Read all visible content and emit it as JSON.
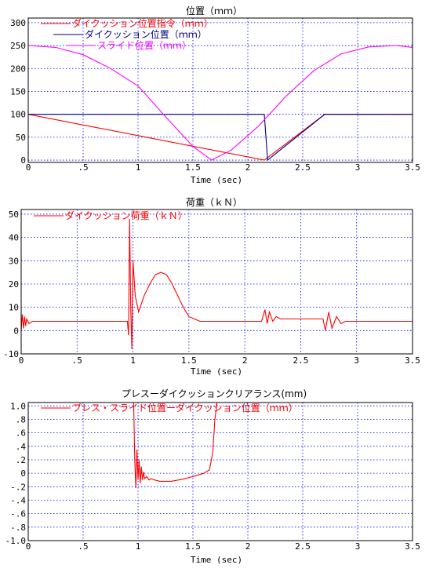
{
  "chart_data": [
    {
      "type": "line",
      "title": "位置（ｍｍ）",
      "xlabel": "Time (sec)",
      "xlim": [
        0,
        3.5
      ],
      "ylim": [
        -5,
        310
      ],
      "x_ticks": [
        0,
        0.5,
        1,
        1.5,
        2,
        2.5,
        3,
        3.5
      ],
      "x_tick_labels": [
        "0",
        ".5",
        "1",
        "1.5",
        "2",
        "2.5",
        "3",
        "3.5"
      ],
      "y_ticks": [
        0,
        50,
        100,
        150,
        200,
        250,
        300
      ],
      "y_tick_labels": [
        "0",
        "50",
        "100",
        "150",
        "200",
        "250",
        "300"
      ],
      "grid": true,
      "legend_position": "top-left",
      "series": [
        {
          "name": "ダイクッション位置指令（ｍｍ）",
          "color": "#ff0000",
          "x": [
            0,
            2.15,
            2.7,
            3.5
          ],
          "y": [
            100,
            0,
            100,
            100
          ]
        },
        {
          "name": "ダイクッション位置（ｍｍ）",
          "color": "#000080",
          "x": [
            0,
            2.15,
            2.18,
            2.7,
            3.5
          ],
          "y": [
            100,
            100,
            0,
            100,
            100
          ]
        },
        {
          "name": "スライド位置（ｍｍ）",
          "color": "#ff00ff",
          "x": [
            0,
            0.25,
            0.5,
            0.75,
            1.0,
            1.25,
            1.5,
            1.67,
            1.85,
            2.1,
            2.35,
            2.6,
            2.85,
            3.1,
            3.35,
            3.5
          ],
          "y": [
            250,
            246,
            230,
            200,
            162,
            95,
            30,
            0,
            22,
            75,
            140,
            195,
            232,
            247,
            250,
            246
          ]
        }
      ]
    },
    {
      "type": "line",
      "title": "荷重（ｋＮ）",
      "xlabel": "Time (sec)",
      "xlim": [
        0,
        3.5
      ],
      "ylim": [
        -10,
        52
      ],
      "x_ticks": [
        0,
        0.5,
        1,
        1.5,
        2,
        2.5,
        3,
        3.5
      ],
      "x_tick_labels": [
        "0",
        ".5",
        "1",
        "1.5",
        "2",
        "2.5",
        "3",
        "3.5"
      ],
      "y_ticks": [
        -10,
        0,
        10,
        20,
        30,
        40,
        50
      ],
      "y_tick_labels": [
        "-10",
        "0",
        "10",
        "20",
        "30",
        "40",
        "50"
      ],
      "grid": true,
      "legend_position": "top-left",
      "series": [
        {
          "name": "ダイクッション荷重（ｋＮ）",
          "color": "#ff0000",
          "x": [
            0,
            0.01,
            0.02,
            0.03,
            0.04,
            0.05,
            0.07,
            0.1,
            0.9,
            0.95,
            0.96,
            0.97,
            0.98,
            0.99,
            1.0,
            1.02,
            1.05,
            1.1,
            1.15,
            1.2,
            1.25,
            1.3,
            1.35,
            1.4,
            1.45,
            1.5,
            1.55,
            1.6,
            1.7,
            2.15,
            2.18,
            2.2,
            2.22,
            2.25,
            2.28,
            2.32,
            2.35,
            2.7,
            2.72,
            2.75,
            2.78,
            2.82,
            2.86,
            2.9,
            3.5
          ],
          "y": [
            0,
            7,
            1,
            6,
            2,
            5,
            3,
            4,
            4,
            4,
            -2,
            48,
            10,
            -8,
            30,
            15,
            8,
            15,
            20,
            24,
            25,
            24,
            20,
            15,
            10,
            6,
            5,
            4,
            4,
            4,
            9,
            3,
            8,
            4,
            6,
            5,
            5,
            5,
            0,
            8,
            1,
            6,
            3,
            4,
            4
          ]
        }
      ]
    },
    {
      "type": "line",
      "title": "プレスーダイクッションクリアランス(mm)",
      "xlabel": "Time (sec)",
      "xlim": [
        0,
        3.5
      ],
      "ylim": [
        -1.0,
        1.05
      ],
      "x_ticks": [
        0,
        0.5,
        1,
        1.5,
        2,
        2.5,
        3,
        3.5
      ],
      "x_tick_labels": [
        "0",
        ".5",
        "1",
        "1.5",
        "2",
        "2.5",
        "3",
        "3.5"
      ],
      "y_ticks": [
        -1.0,
        -0.8,
        -0.6,
        -0.4,
        -0.2,
        0,
        0.2,
        0.4,
        0.6,
        0.8,
        1.0
      ],
      "y_tick_labels": [
        "-1.0",
        "-.8",
        "-.6",
        "-.4",
        "-.2",
        "0",
        ".2",
        ".4",
        ".6",
        ".8",
        "1.0"
      ],
      "grid": true,
      "legend_position": "top-left",
      "series": [
        {
          "name": "プレス・スライド位置ーダイクッション位置（ｍｍ）",
          "color": "#ff0000",
          "x": [
            0.96,
            0.97,
            0.98,
            0.99,
            1.0,
            1.01,
            1.02,
            1.03,
            1.04,
            1.05,
            1.06,
            1.08,
            1.1,
            1.12,
            1.15,
            1.2,
            1.3,
            1.4,
            1.5,
            1.6,
            1.65,
            1.68,
            1.7,
            1.72
          ],
          "y": [
            1.05,
            0.2,
            -0.22,
            0.35,
            -0.1,
            0.2,
            -0.15,
            0.1,
            -0.1,
            0.02,
            -0.08,
            -0.05,
            -0.1,
            -0.08,
            -0.1,
            -0.12,
            -0.12,
            -0.09,
            -0.05,
            0.0,
            0.05,
            0.3,
            0.8,
            1.05
          ]
        }
      ]
    }
  ]
}
